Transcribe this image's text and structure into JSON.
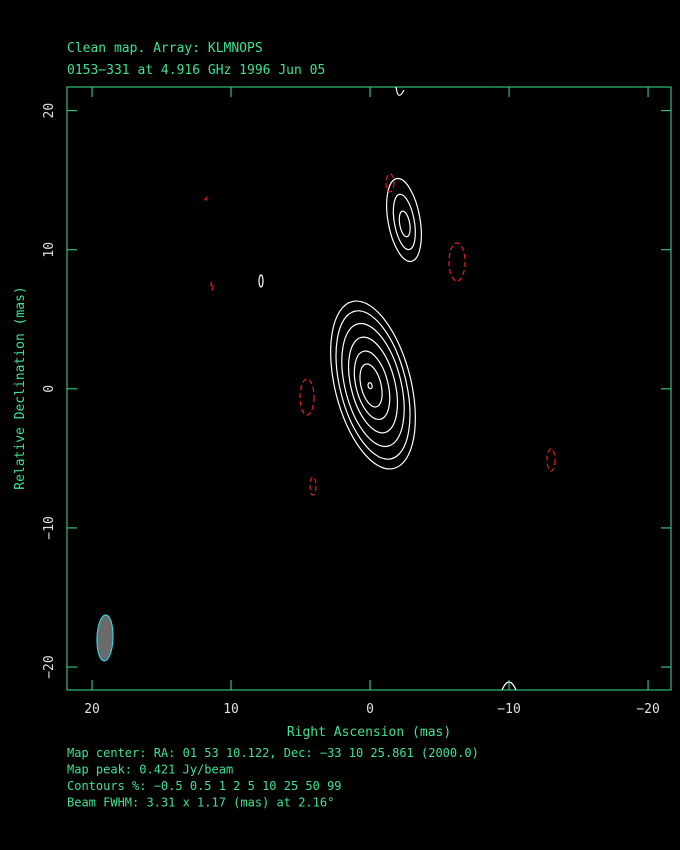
{
  "chart_data": {
    "type": "contour",
    "title": "Clean map.  Array: KLMNOPS",
    "subtitle": "0153−331 at 4.916 GHz 1996 Jun 05",
    "x_label": "Right Ascension  (mas)",
    "y_label": "Relative Declination  (mas)",
    "xlim": [
      21.8,
      -21.65
    ],
    "ylim": [
      -21.65,
      21.7
    ],
    "xticks": [
      20,
      10,
      0,
      {
        "value": -10,
        "label": "−10"
      },
      {
        "value": -20,
        "label": "−20"
      }
    ],
    "yticks": [
      {
        "value": -20,
        "label": "−20"
      },
      {
        "value": -10,
        "label": "−10"
      },
      0,
      10,
      20
    ],
    "annotations": [
      "Map center:  RA: 01 53 10.122,  Dec: −33 10 25.861 (2000.0)",
      "Map peak: 0.421 Jy/beam",
      "Contours %: −0.5 0.5 1 2 5 10 25 50 99",
      "Beam FWHM: 3.31 x 1.17 (mas) at 2.16°"
    ]
  }
}
